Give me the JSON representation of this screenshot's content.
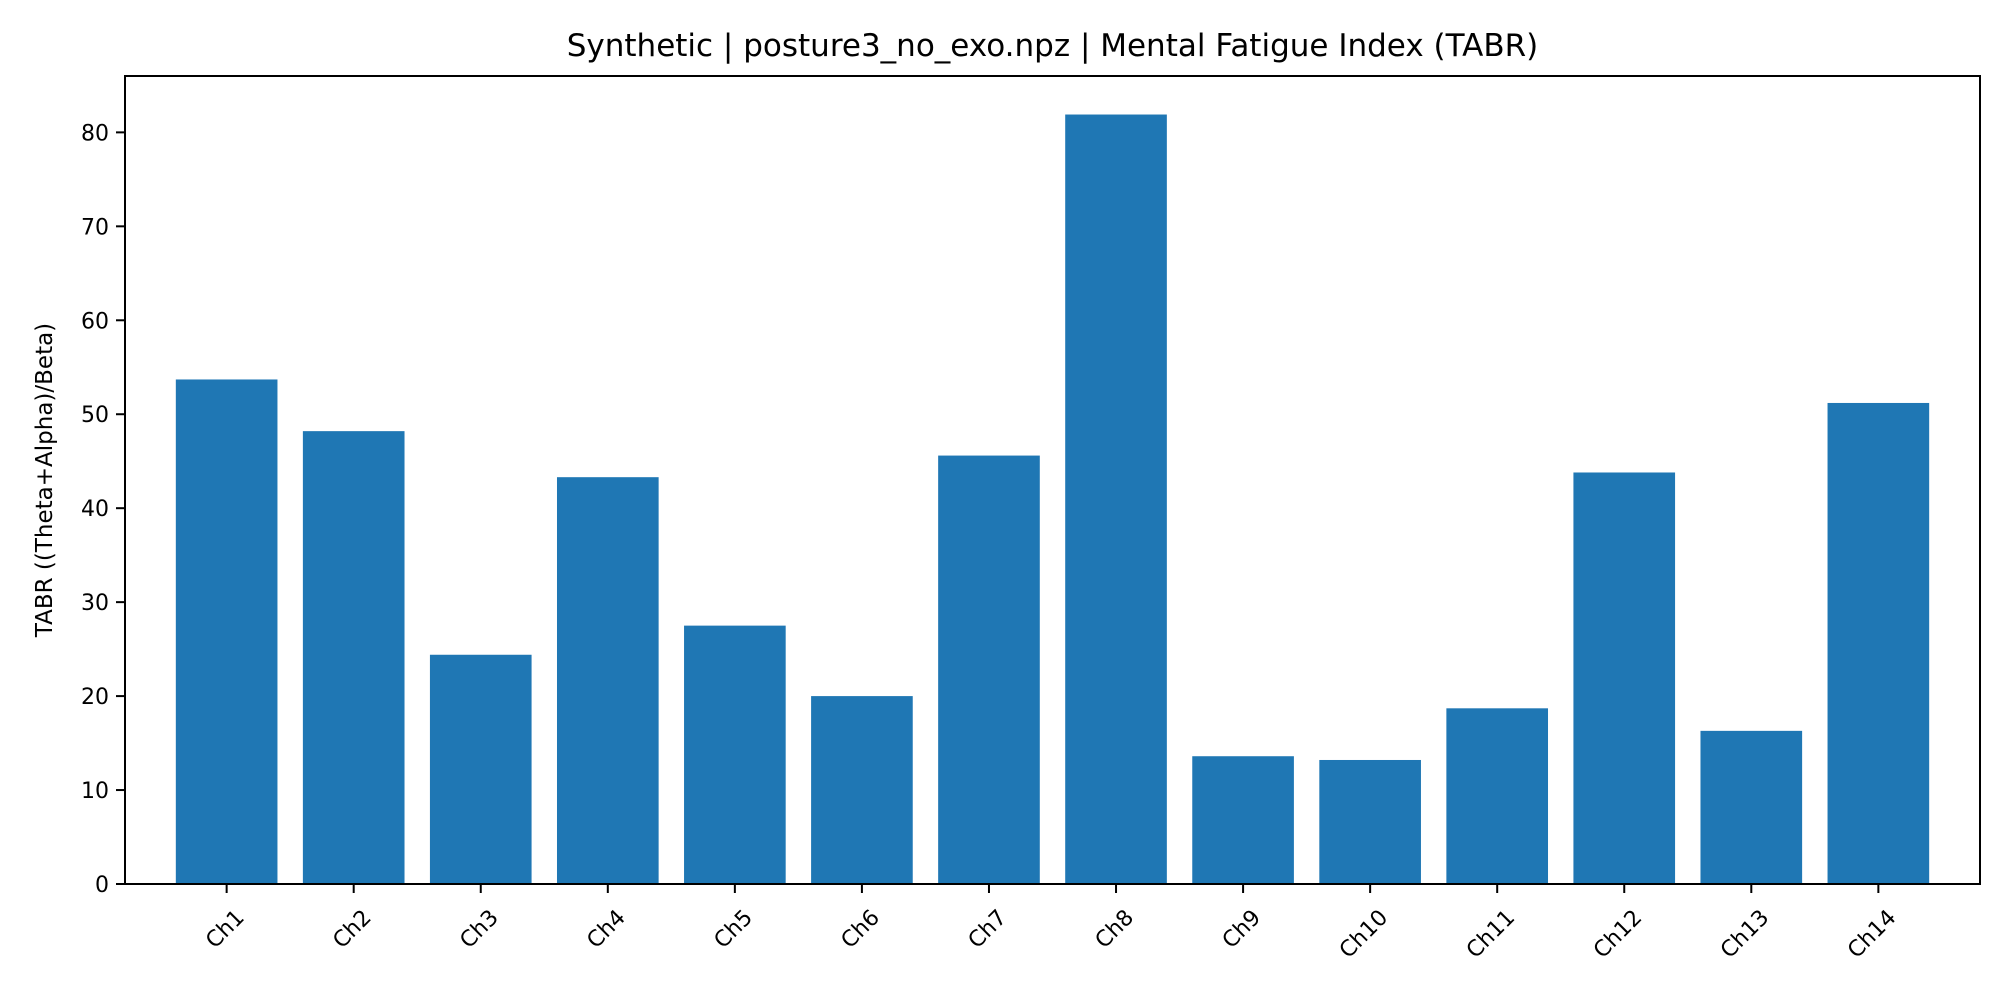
{
  "chart_data": {
    "type": "bar",
    "title": "Synthetic | posture3_no_exo.npz | Mental Fatigue Index (TABR)",
    "xlabel": "",
    "ylabel": "TABR ((Theta+Alpha)/Beta)",
    "categories": [
      "Ch1",
      "Ch2",
      "Ch3",
      "Ch4",
      "Ch5",
      "Ch6",
      "Ch7",
      "Ch8",
      "Ch9",
      "Ch10",
      "Ch11",
      "Ch12",
      "Ch13",
      "Ch14"
    ],
    "values": [
      53.7,
      48.2,
      24.4,
      43.3,
      27.5,
      20.0,
      45.6,
      81.9,
      13.6,
      13.2,
      18.7,
      43.8,
      16.3,
      51.2
    ],
    "ylim": [
      0,
      86
    ],
    "yticks": [
      0,
      10,
      20,
      30,
      40,
      50,
      60,
      70,
      80
    ],
    "grid": false,
    "colors": {
      "bar": "#1f77b4",
      "axis": "#000000"
    }
  }
}
